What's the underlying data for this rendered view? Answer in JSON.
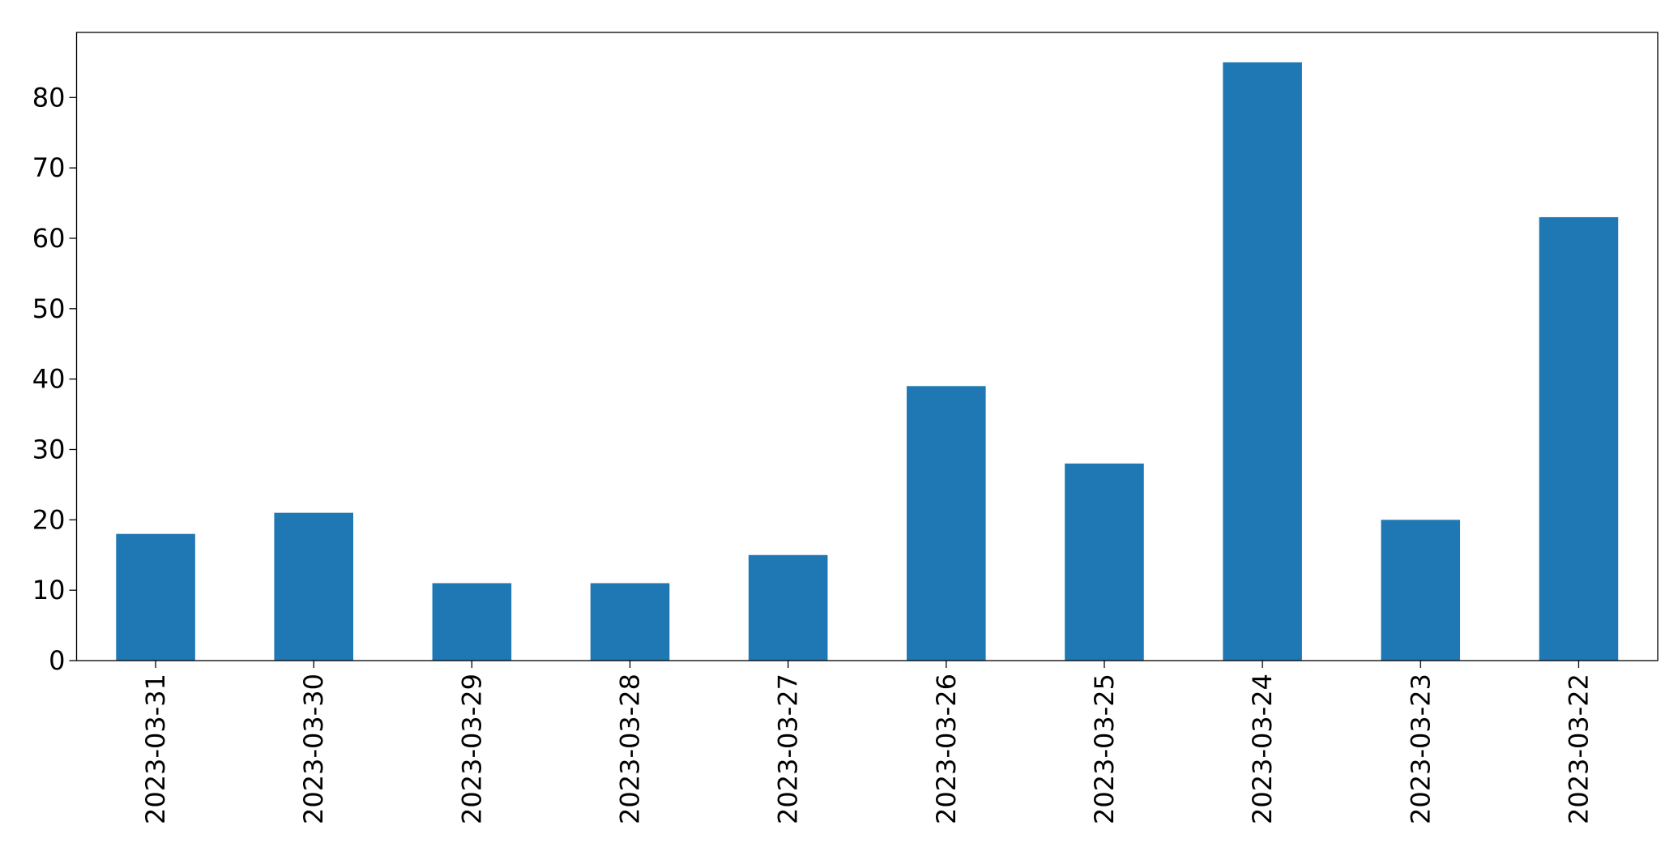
{
  "chart_data": {
    "type": "bar",
    "categories": [
      "2023-03-31",
      "2023-03-30",
      "2023-03-29",
      "2023-03-28",
      "2023-03-27",
      "2023-03-26",
      "2023-03-25",
      "2023-03-24",
      "2023-03-23",
      "2023-03-22"
    ],
    "values": [
      18,
      21,
      11,
      11,
      15,
      39,
      28,
      85,
      20,
      63
    ],
    "color": "#1f77b4",
    "ylim": [
      0,
      89.25
    ],
    "yticks": [
      0,
      10,
      20,
      30,
      40,
      50,
      60,
      70,
      80
    ],
    "grid": false
  }
}
